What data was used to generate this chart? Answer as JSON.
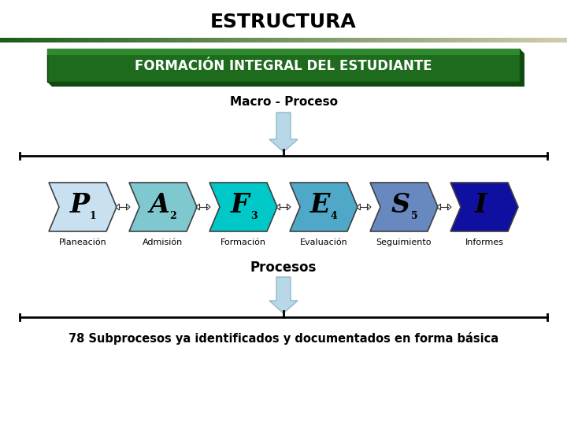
{
  "title": "ESTRUCTURA",
  "banner_text": "FORMACIÓN INTEGRAL DEL ESTUDIANTE",
  "macro_text": "Macro - Proceso",
  "processes_text": "Procesos",
  "bottom_text": "78 Subprocesos ya identificados y documentados en forma básica",
  "arrows": [
    {
      "letter": "P",
      "sub": "1",
      "label": "Planeación",
      "color": "#c8e0f0"
    },
    {
      "letter": "A",
      "sub": "2",
      "label": "Admisión",
      "color": "#80c8d0"
    },
    {
      "letter": "F",
      "sub": "3",
      "label": "Formación",
      "color": "#00c8c8"
    },
    {
      "letter": "E",
      "sub": "4",
      "label": "Evaluación",
      "color": "#50a8c8"
    },
    {
      "letter": "S",
      "sub": "5",
      "label": "Seguimiento",
      "color": "#6888c0"
    },
    {
      "letter": "I",
      "sub": "",
      "label": "Informes",
      "color": "#1010a0"
    }
  ],
  "bg_color": "#ffffff",
  "down_arrow_color": "#b8d8e8",
  "down_arrow_border": "#90b8cc"
}
